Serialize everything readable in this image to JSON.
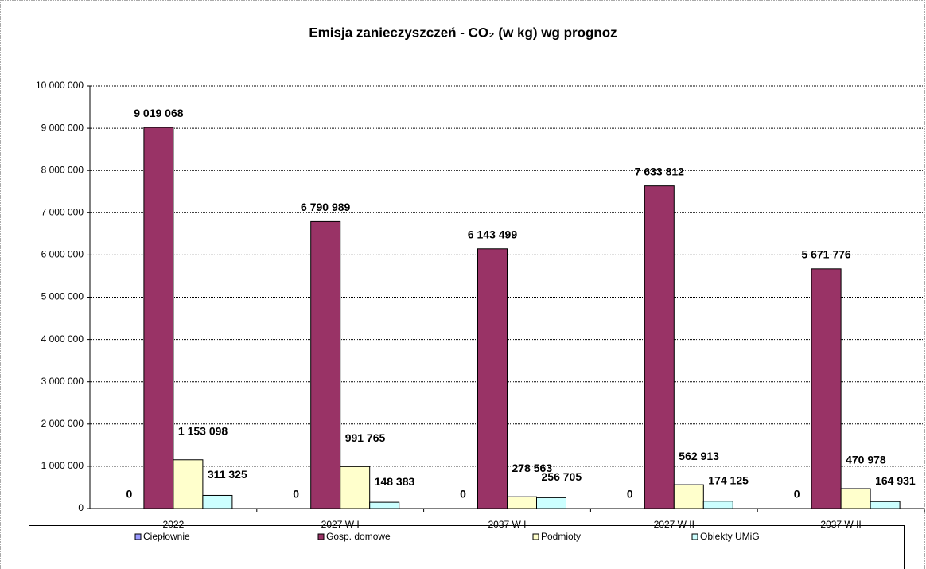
{
  "chart_data": {
    "type": "bar",
    "title": "Emisja zanieczyszczeń - CO₂  (w kg)  wg prognoz",
    "categories": [
      "2022",
      "2027 W I",
      "2037 W I",
      "2027 W II",
      "2037 W II"
    ],
    "series": [
      {
        "name": "Ciepłownie",
        "color": "#9999ff",
        "values": [
          0,
          0,
          0,
          0,
          0
        ],
        "value_labels": [
          "0",
          "0",
          "0",
          "0",
          "0"
        ]
      },
      {
        "name": "Gosp. domowe",
        "color": "#993366",
        "values": [
          9019068,
          6790989,
          6143499,
          7633812,
          5671776
        ],
        "value_labels": [
          "9 019 068",
          "6 790 989",
          "6 143 499",
          "7 633 812",
          "5 671 776"
        ]
      },
      {
        "name": "Podmioty",
        "color": "#ffffcc",
        "values": [
          1153098,
          991765,
          278563,
          562913,
          470978
        ],
        "value_labels": [
          "1 153 098",
          "991 765",
          "278 563",
          "562 913",
          "470 978"
        ]
      },
      {
        "name": "Obiekty UMiG",
        "color": "#ccffff",
        "values": [
          311325,
          148383,
          256705,
          174125,
          164931
        ],
        "value_labels": [
          "311 325",
          "148 383",
          "256 705",
          "174 125",
          "164 931"
        ]
      }
    ],
    "ylim": [
      0,
      10000000
    ],
    "yticks": [
      0,
      {
        "value": 1000000,
        "label": "1 000 000"
      },
      {
        "value": 2000000,
        "label": "2 000 000"
      },
      {
        "value": 3000000,
        "label": "3 000 000"
      },
      {
        "value": 4000000,
        "label": "4 000 000"
      },
      {
        "value": 5000000,
        "label": "5 000 000"
      },
      {
        "value": 6000000,
        "label": "6 000 000"
      },
      {
        "value": 7000000,
        "label": "7 000 000"
      },
      {
        "value": 8000000,
        "label": "8 000 000"
      },
      {
        "value": 9000000,
        "label": "9 000 000"
      },
      {
        "value": 10000000,
        "label": "10 000 000"
      }
    ],
    "grid": true
  }
}
